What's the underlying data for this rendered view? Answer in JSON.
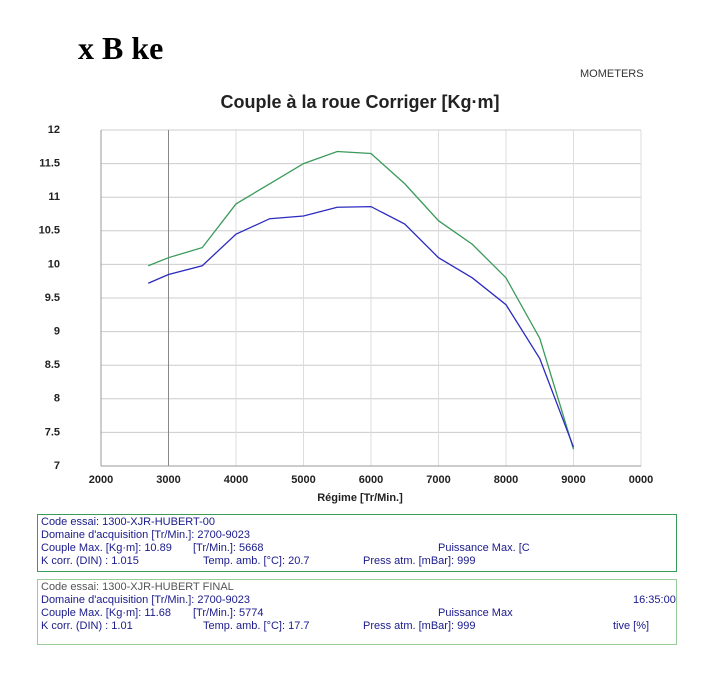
{
  "header": {
    "logo": "x B ke",
    "brand": "MOMETERS"
  },
  "chart_data": {
    "type": "line",
    "title": "Couple à la roue Corriger [Kg·m]",
    "x_label": "Régime [Tr/Min.]",
    "x": [
      2700,
      3000,
      3500,
      4000,
      4500,
      5000,
      5500,
      6000,
      6500,
      7000,
      7500,
      8000,
      8500,
      9000
    ],
    "series": [
      {
        "name": "1300-XJR-HUBERT FINAL",
        "color": "#3a9a5a",
        "values": [
          9.98,
          10.1,
          10.25,
          10.9,
          11.2,
          11.5,
          11.68,
          11.65,
          11.2,
          10.65,
          10.3,
          9.8,
          8.9,
          7.25
        ]
      },
      {
        "name": "1300-XJR-HUBERT-00",
        "color": "#2b2bc0",
        "values": [
          9.72,
          9.85,
          9.98,
          10.45,
          10.68,
          10.72,
          10.85,
          10.86,
          10.6,
          10.1,
          9.8,
          9.4,
          8.6,
          7.28
        ]
      }
    ],
    "xlim": [
      2000,
      10000
    ],
    "xticks": [
      2000,
      3000,
      4000,
      5000,
      6000,
      7000,
      8000,
      9000,
      {
        "value": 10000,
        "label": "0000"
      }
    ],
    "ylim": [
      7,
      12
    ],
    "yticks": [
      7,
      7.5,
      8,
      8.5,
      9,
      9.5,
      10,
      10.5,
      11,
      11.5,
      12
    ],
    "grid": true
  },
  "info_boxes": [
    {
      "lines": [
        "Code essai: 1300-XJR-HUBERT-00",
        "Domaine d'acquisition [Tr/Min.]: 2700-9023",
        "Couple Max. [Kg·m]: 10.89",
        "[Tr/Min.]: 5668",
        "Puissance Max. [C",
        "K corr. (DIN) : 1.015",
        "Temp. amb. [°C]: 20.7",
        "Press atm. [mBar]: 999"
      ]
    },
    {
      "lines": [
        "Code essai: 1300-XJR-HUBERT FINAL",
        "Domaine d'acquisition [Tr/Min.]: 2700-9023",
        "16:35:00",
        "Couple Max. [Kg·m]: 11.68",
        "[Tr/Min.]: 5774",
        "Puissance Max",
        "K corr. (DIN) : 1.01",
        "Temp. amb. [°C]: 17.7",
        "Press atm. [mBar]: 999",
        "tive [%]"
      ]
    }
  ]
}
